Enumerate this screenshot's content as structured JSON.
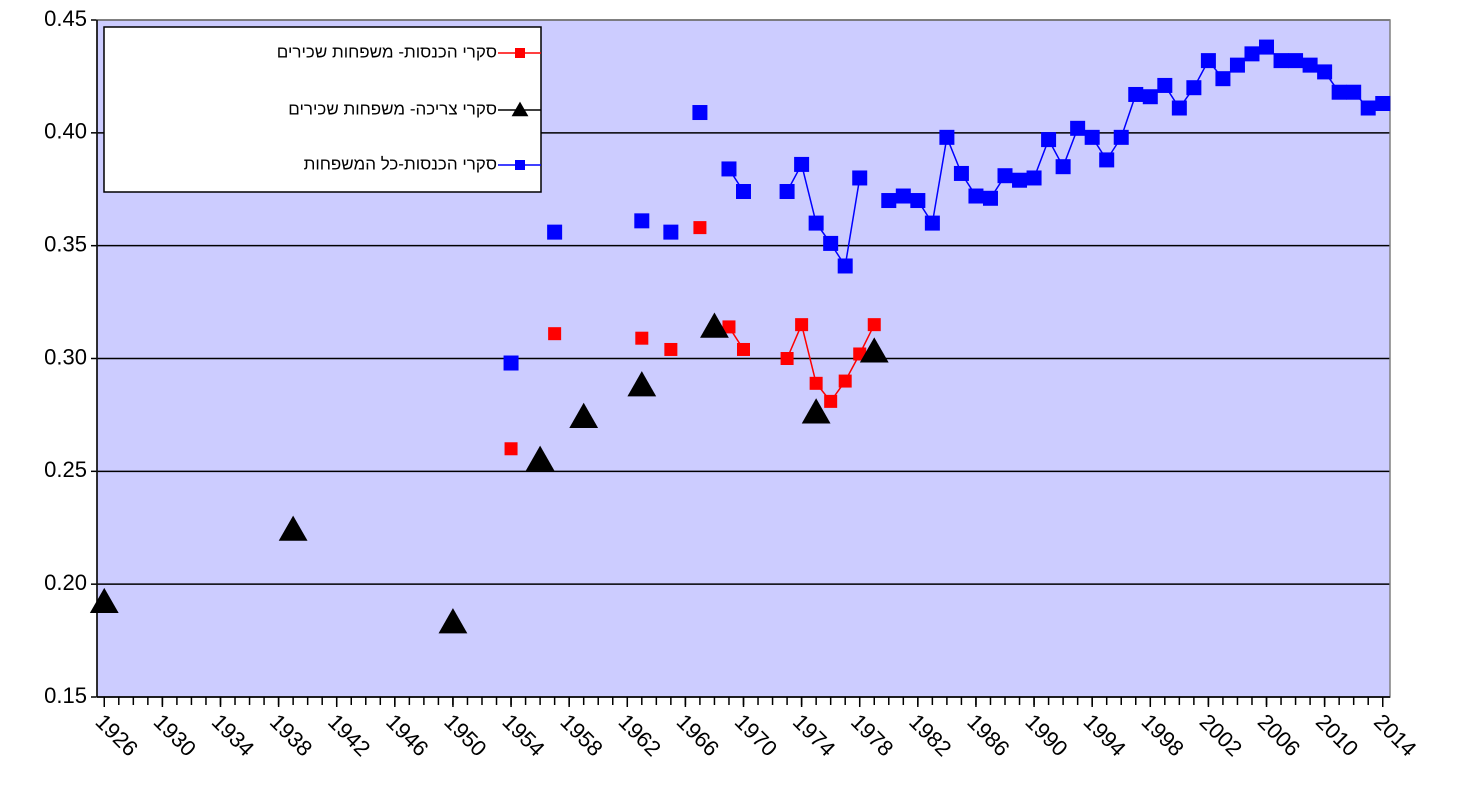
{
  "chart_data": {
    "type": "line",
    "x": [
      1926,
      1927,
      1928,
      1929,
      1930,
      1931,
      1932,
      1933,
      1934,
      1935,
      1936,
      1937,
      1938,
      1939,
      1940,
      1941,
      1942,
      1943,
      1944,
      1945,
      1946,
      1947,
      1948,
      1949,
      1950,
      1951,
      1952,
      1953,
      1954,
      1955,
      1956,
      1957,
      1958,
      1959,
      1960,
      1961,
      1962,
      1963,
      1964,
      1965,
      1966,
      1967,
      1968,
      1969,
      1970,
      1971,
      1972,
      1973,
      1974,
      1975,
      1976,
      1977,
      1978,
      1979,
      1980,
      1981,
      1982,
      1983,
      1984,
      1985,
      1986,
      1987,
      1988,
      1989,
      1990,
      1991,
      1992,
      1993,
      1994,
      1995,
      1996,
      1997,
      1998,
      1999,
      2000,
      2001,
      2002,
      2003,
      2004,
      2005,
      2006,
      2007,
      2008,
      2009,
      2010,
      2011,
      2012,
      2013,
      2014
    ],
    "series": [
      {
        "name": "סקרי הכנסות- משפחות שכירים",
        "color": "#ff0000",
        "marker": "square",
        "values": [
          null,
          null,
          null,
          null,
          null,
          null,
          null,
          null,
          null,
          null,
          null,
          null,
          null,
          null,
          null,
          null,
          null,
          null,
          null,
          null,
          null,
          null,
          null,
          null,
          null,
          null,
          null,
          null,
          0.26,
          null,
          null,
          0.311,
          null,
          null,
          null,
          null,
          null,
          0.309,
          null,
          0.304,
          null,
          0.358,
          null,
          0.314,
          0.304,
          null,
          null,
          0.3,
          0.315,
          0.289,
          0.281,
          0.29,
          0.302,
          0.315,
          null,
          null,
          null,
          null,
          null,
          null,
          null,
          null,
          null,
          null,
          null,
          null,
          null,
          null,
          null,
          null,
          null,
          null,
          null,
          null,
          null,
          null,
          null,
          null,
          null,
          null,
          null,
          null,
          null,
          null,
          null,
          null,
          null,
          null,
          null
        ]
      },
      {
        "name": "סקרי צריכה- משפחות שכירים",
        "color": "#000000",
        "marker": "triangle",
        "values": [
          0.192,
          null,
          null,
          null,
          null,
          null,
          null,
          null,
          null,
          null,
          null,
          null,
          null,
          0.224,
          null,
          null,
          null,
          null,
          null,
          null,
          null,
          null,
          null,
          null,
          0.183,
          null,
          null,
          null,
          null,
          null,
          0.255,
          null,
          null,
          0.274,
          null,
          null,
          null,
          0.288,
          null,
          null,
          null,
          null,
          0.314,
          null,
          null,
          null,
          null,
          null,
          null,
          0.276,
          null,
          null,
          null,
          0.303,
          null,
          null,
          null,
          null,
          null,
          null,
          null,
          null,
          null,
          null,
          null,
          null,
          null,
          null,
          null,
          null,
          null,
          null,
          null,
          null,
          null,
          null,
          null,
          null,
          null,
          null,
          null,
          null,
          null,
          null,
          null,
          null,
          null,
          null,
          null
        ]
      },
      {
        "name": "סקרי הכנסות-כל המשפחות",
        "color": "#0000ff",
        "marker": "square",
        "values": [
          null,
          null,
          null,
          null,
          null,
          null,
          null,
          null,
          null,
          null,
          null,
          null,
          null,
          null,
          null,
          null,
          null,
          null,
          null,
          null,
          null,
          null,
          null,
          null,
          null,
          null,
          null,
          null,
          0.298,
          null,
          null,
          0.356,
          null,
          null,
          null,
          null,
          null,
          0.361,
          null,
          0.356,
          null,
          0.409,
          null,
          0.384,
          0.374,
          null,
          null,
          0.374,
          0.386,
          0.36,
          0.351,
          0.341,
          0.38,
          null,
          0.37,
          0.372,
          0.37,
          0.36,
          0.398,
          0.382,
          0.372,
          0.371,
          0.381,
          0.379,
          0.38,
          0.397,
          0.385,
          0.402,
          0.398,
          0.388,
          0.398,
          0.417,
          0.416,
          0.421,
          0.411,
          0.42,
          0.432,
          0.424,
          0.43,
          0.435,
          0.438,
          0.432,
          0.432,
          0.43,
          0.427,
          0.418,
          0.418,
          0.411,
          0.413
        ]
      }
    ],
    "xlim": [
      1925.5,
      2014.5
    ],
    "xticks": [
      1926,
      1930,
      1934,
      1938,
      1942,
      1946,
      1950,
      1954,
      1958,
      1962,
      1966,
      1970,
      1974,
      1978,
      1982,
      1986,
      1990,
      1994,
      1998,
      2002,
      2006,
      2010,
      2014
    ],
    "ylim": [
      0.15,
      0.45
    ],
    "yticks": [
      {
        "value": 0.15,
        "label": "0.15"
      },
      {
        "value": 0.2,
        "label": "0.20"
      },
      0.25,
      {
        "value": 0.3,
        "label": "0.30"
      },
      0.35,
      {
        "value": 0.4,
        "label": "0.40"
      },
      0.45
    ],
    "grid": true,
    "legend": "upper left",
    "plot_background": "#ccccff"
  }
}
